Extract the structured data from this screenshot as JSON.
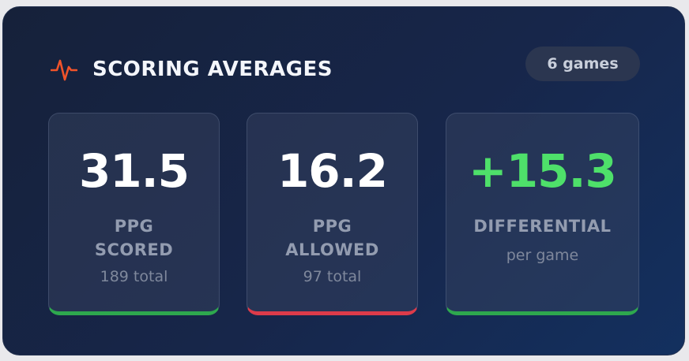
{
  "header": {
    "icon": "pulse-icon",
    "title": "SCORING AVERAGES",
    "games_badge": "6 games"
  },
  "stats": [
    {
      "value": "31.5",
      "label_line1": "PPG",
      "label_line2": "SCORED",
      "sub": "189 total",
      "accent": "#2ea84e"
    },
    {
      "value": "16.2",
      "label_line1": "PPG",
      "label_line2": "ALLOWED",
      "sub": "97 total",
      "accent": "#dd3b4a"
    },
    {
      "value": "+15.3",
      "label_line1": "DIFFERENTIAL",
      "sub": "per game",
      "accent": "#2ea84e",
      "value_color": "#4ee06a"
    }
  ],
  "colors": {
    "card_background": "#16213a",
    "title_text": "#f4f6fb",
    "icon_accent": "#f0532a",
    "positive": "#4ee06a"
  }
}
